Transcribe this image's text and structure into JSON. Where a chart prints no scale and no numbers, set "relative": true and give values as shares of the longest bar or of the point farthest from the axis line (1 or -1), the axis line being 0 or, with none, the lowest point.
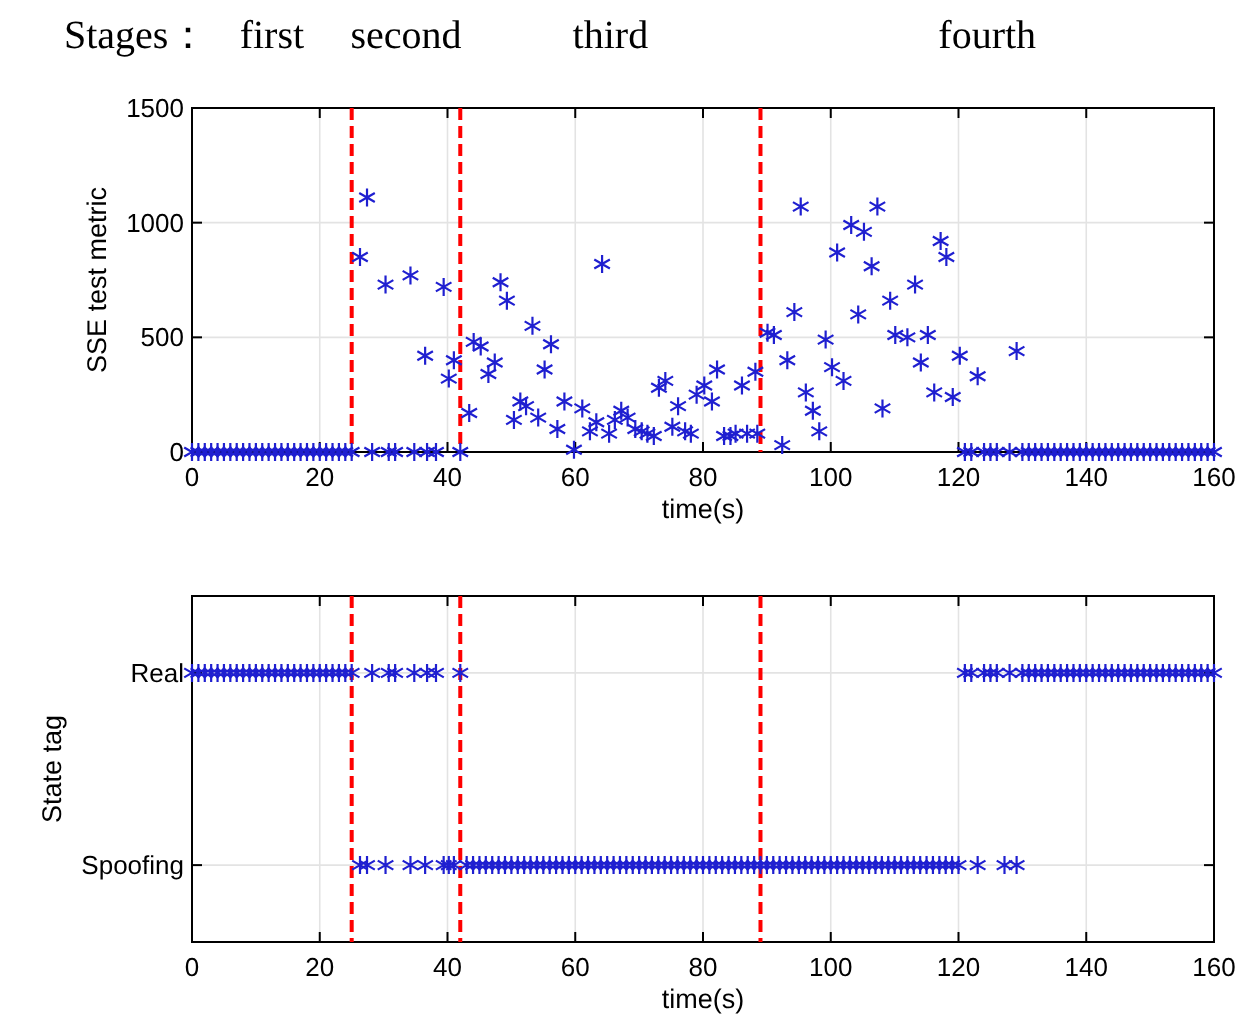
{
  "chart_data": [
    {
      "type": "scatter",
      "xlabel": "time(s)",
      "ylabel": "SSE test metric",
      "xlim": [
        0,
        160
      ],
      "ylim": [
        0,
        1500
      ],
      "xticks": [
        0,
        20,
        40,
        60,
        80,
        100,
        120,
        140,
        160
      ],
      "yticks": [
        0,
        500,
        1000,
        1500
      ],
      "grid": true,
      "marker": "cross",
      "annotations": [
        "Stages：",
        "first",
        "second",
        "third",
        "fourth"
      ],
      "ref_lines": [
        {
          "axis": "x",
          "value": 25,
          "color": "#ff0000",
          "line_style": "dashed"
        },
        {
          "axis": "x",
          "value": 42,
          "color": "#ff0000",
          "line_style": "dashed"
        },
        {
          "axis": "x",
          "value": 89,
          "color": "#ff0000",
          "line_style": "dashed"
        }
      ],
      "series": [
        {
          "color": "#1f1fd0",
          "x": [
            0,
            1,
            2,
            3,
            4,
            5,
            6,
            7,
            8,
            9,
            10,
            11,
            12,
            13,
            14,
            15,
            16,
            17,
            18,
            19,
            20,
            21,
            22,
            23,
            24,
            25,
            28.2,
            30.8,
            31.8,
            34.8,
            36.8,
            38.2,
            42,
            121,
            122,
            124,
            125,
            126,
            128,
            130,
            131,
            132,
            133,
            134,
            135,
            136,
            137,
            138,
            139,
            140,
            141,
            142,
            143,
            144,
            145,
            146,
            147,
            148,
            149,
            150,
            151,
            152,
            153,
            154,
            155,
            156,
            157,
            158,
            159,
            160,
            26.3,
            27.4,
            30.3,
            34.2,
            36.5,
            39.4,
            40.2,
            41,
            43.4,
            44.1,
            45.2,
            46.4,
            47.4,
            48.3,
            49.3,
            50.4,
            51.4,
            52.3,
            53.3,
            54.2,
            55.2,
            56.2,
            57.2,
            58.3,
            59.8,
            61.1,
            62.3,
            63.3,
            64.2,
            65.3,
            66.2,
            67.2,
            68.2,
            69.4,
            70.4,
            71.3,
            72.3,
            73.1,
            74.1,
            75.2,
            76.1,
            77.2,
            78.1,
            79,
            80.2,
            81.4,
            82.2,
            83.3,
            84.3,
            85.1,
            86.1,
            86.9,
            88.2,
            88.5,
            90.1,
            91.1,
            92.4,
            93.2,
            94.3,
            95.3,
            96.1,
            97.2,
            98.2,
            99.2,
            100.2,
            101,
            102,
            103.2,
            104.3,
            105.2,
            106.4,
            107.3,
            108.1,
            109.3,
            110.1,
            112,
            113.2,
            114.1,
            115.2,
            116.2,
            117.2,
            118.1,
            119.1,
            120.2,
            123,
            129.1
          ],
          "values": [
            0,
            0,
            0,
            0,
            0,
            0,
            0,
            0,
            0,
            0,
            0,
            0,
            0,
            0,
            0,
            0,
            0,
            0,
            0,
            0,
            0,
            0,
            0,
            0,
            0,
            0,
            0,
            0,
            0,
            0,
            0,
            0,
            0,
            0,
            0,
            0,
            0,
            0,
            0,
            0,
            0,
            0,
            0,
            0,
            0,
            0,
            0,
            0,
            0,
            0,
            0,
            0,
            0,
            0,
            0,
            0,
            0,
            0,
            0,
            0,
            0,
            0,
            0,
            0,
            0,
            0,
            0,
            0,
            0,
            0,
            850,
            1110,
            730,
            770,
            420,
            720,
            320,
            400,
            170,
            480,
            460,
            340,
            390,
            740,
            660,
            140,
            220,
            200,
            550,
            150,
            360,
            470,
            100,
            220,
            10,
            190,
            90,
            130,
            820,
            80,
            140,
            180,
            150,
            100,
            90,
            80,
            70,
            280,
            310,
            110,
            200,
            90,
            80,
            250,
            290,
            220,
            360,
            70,
            70,
            80,
            290,
            80,
            350,
            80,
            520,
            510,
            30,
            400,
            610,
            1070,
            260,
            180,
            90,
            490,
            370,
            870,
            310,
            990,
            600,
            960,
            810,
            1070,
            190,
            660,
            510,
            500,
            730,
            390,
            510,
            260,
            920,
            850,
            240,
            420,
            330,
            440
          ]
        }
      ]
    },
    {
      "type": "scatter",
      "xlabel": "time(s)",
      "ylabel": "State tag",
      "xlim": [
        0,
        160
      ],
      "xticks": [
        0,
        20,
        40,
        60,
        80,
        100,
        120,
        140,
        160
      ],
      "relative": true,
      "annotations": [
        "Spoofing",
        "Real"
      ],
      "grid": true,
      "marker": "cross",
      "ref_lines": [
        {
          "axis": "x",
          "value": 25,
          "color": "#ff0000",
          "line_style": "dashed"
        },
        {
          "axis": "x",
          "value": 42,
          "color": "#ff0000",
          "line_style": "dashed"
        },
        {
          "axis": "x",
          "value": 89,
          "color": "#ff0000",
          "line_style": "dashed"
        }
      ],
      "series": [
        {
          "color": "#1f1fd0",
          "x": [
            0,
            1,
            2,
            3,
            4,
            5,
            6,
            7,
            8,
            9,
            10,
            11,
            12,
            13,
            14,
            15,
            16,
            17,
            18,
            19,
            20,
            21,
            22,
            23,
            24,
            25,
            28.2,
            30.8,
            31.8,
            34.8,
            36.8,
            38.2,
            42,
            121,
            122,
            124,
            125,
            126,
            128,
            130,
            131,
            132,
            133,
            134,
            135,
            136,
            137,
            138,
            139,
            140,
            141,
            142,
            143,
            144,
            145,
            146,
            147,
            148,
            149,
            150,
            151,
            152,
            153,
            154,
            155,
            156,
            157,
            158,
            159,
            160,
            26.3,
            27.4,
            30.3,
            34.2,
            36.5,
            39.4,
            40.2,
            41,
            43,
            44,
            45,
            46,
            47,
            48,
            49,
            50,
            51,
            52,
            53,
            54,
            55,
            56,
            57,
            58,
            59,
            60,
            61,
            62,
            63,
            64,
            65,
            66,
            67,
            68,
            69,
            70,
            71,
            72,
            73,
            74,
            75,
            76,
            77,
            78,
            79,
            80,
            81,
            82,
            83,
            84,
            85,
            86,
            87,
            88,
            89,
            90,
            91,
            92,
            93,
            94,
            95,
            96,
            97,
            98,
            99,
            100,
            101,
            102,
            103,
            104,
            105,
            106,
            107,
            108,
            109,
            110,
            111,
            112,
            113,
            114,
            115,
            116,
            117,
            118,
            119,
            120,
            123,
            127.2,
            129.1
          ],
          "values": [
            1,
            1,
            1,
            1,
            1,
            1,
            1,
            1,
            1,
            1,
            1,
            1,
            1,
            1,
            1,
            1,
            1,
            1,
            1,
            1,
            1,
            1,
            1,
            1,
            1,
            1,
            1,
            1,
            1,
            1,
            1,
            1,
            1,
            1,
            1,
            1,
            1,
            1,
            1,
            1,
            1,
            1,
            1,
            1,
            1,
            1,
            1,
            1,
            1,
            1,
            1,
            1,
            1,
            1,
            1,
            1,
            1,
            1,
            1,
            1,
            1,
            1,
            1,
            1,
            1,
            1,
            1,
            1,
            1,
            1,
            0,
            0,
            0,
            0,
            0,
            0,
            0,
            0,
            0,
            0,
            0,
            0,
            0,
            0,
            0,
            0,
            0,
            0,
            0,
            0,
            0,
            0,
            0,
            0,
            0,
            0,
            0,
            0,
            0,
            0,
            0,
            0,
            0,
            0,
            0,
            0,
            0,
            0,
            0,
            0,
            0,
            0,
            0,
            0,
            0,
            0,
            0,
            0,
            0,
            0,
            0,
            0,
            0,
            0,
            0,
            0,
            0,
            0,
            0,
            0,
            0,
            0,
            0,
            0,
            0,
            0,
            0,
            0,
            0,
            0,
            0,
            0,
            0,
            0,
            0,
            0,
            0,
            0,
            0,
            0,
            0,
            0,
            0,
            0,
            0,
            0,
            0,
            0,
            0
          ]
        }
      ]
    }
  ]
}
